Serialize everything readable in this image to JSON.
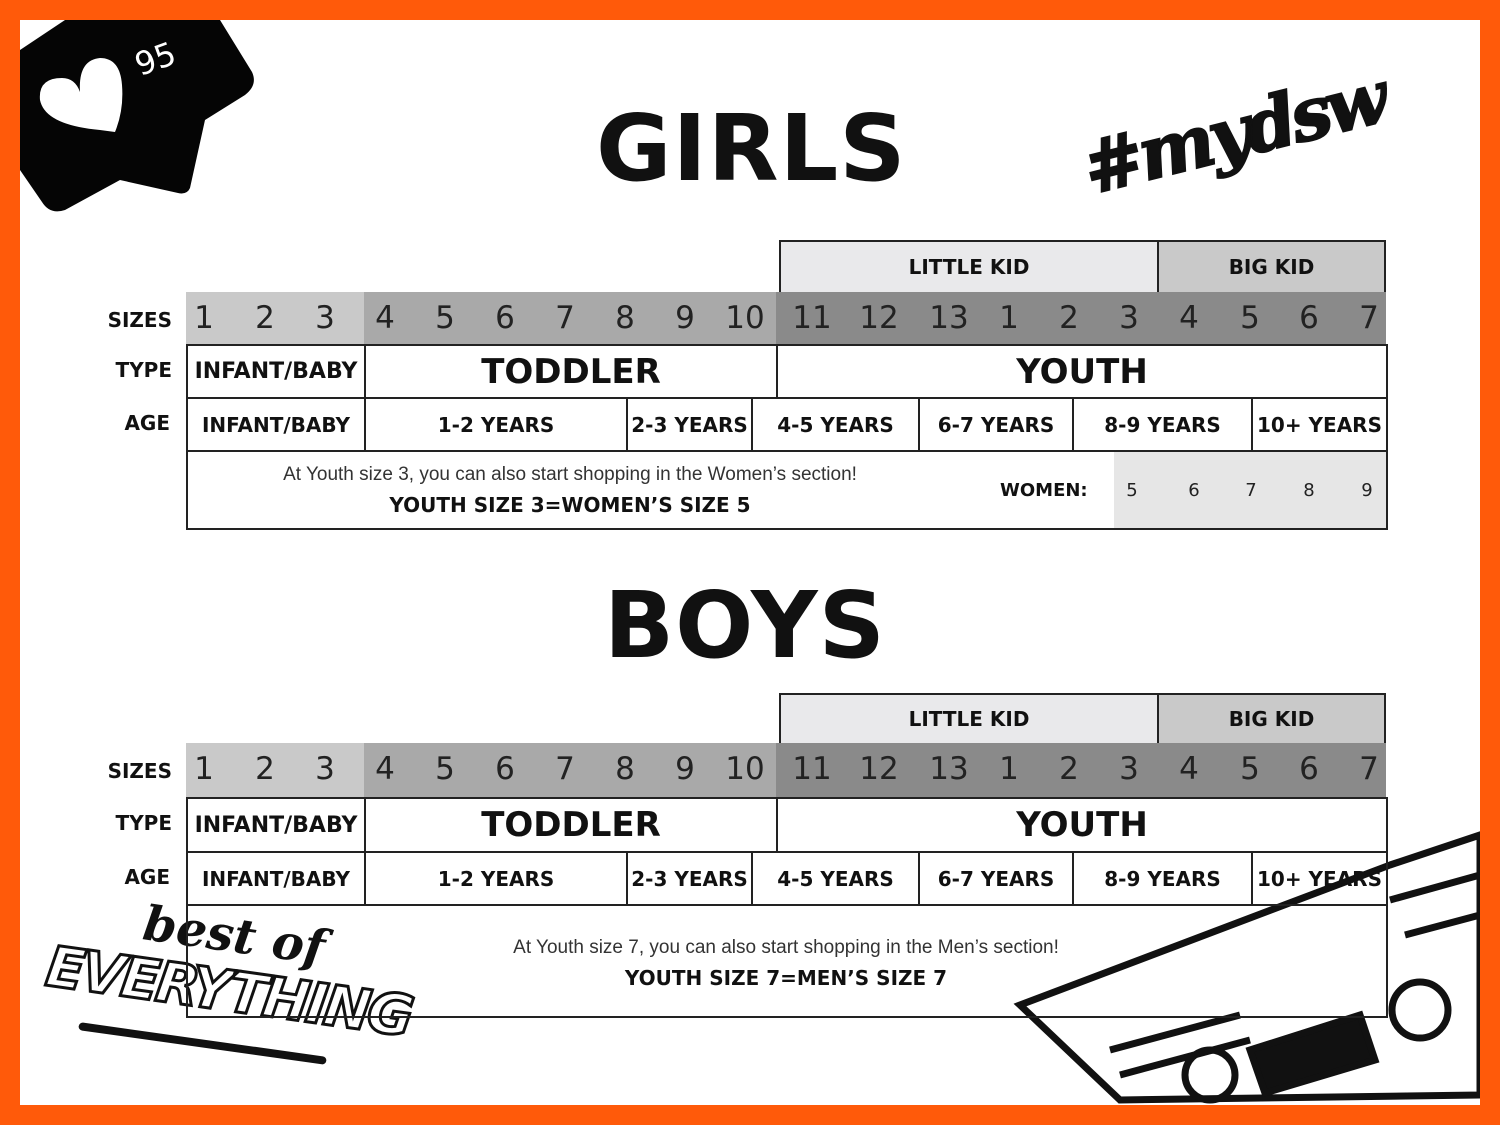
{
  "colors": {
    "border": "#ff5a0a",
    "sizes_infant": "#c9c9c9",
    "sizes_toddler": "#a9a9a9",
    "sizes_youth": "#8a8a8a",
    "little_kid": "#e9e9eb",
    "big_kid": "#c9c9c9",
    "women_cells": "#e6e6e6"
  },
  "badge": {
    "icon": "heart-icon",
    "count": "95"
  },
  "hashtag": "#mydsw",
  "logo": "best of EVERYTHING",
  "row_labels": {
    "sizes": "SIZES",
    "type": "TYPE",
    "age": "AGE"
  },
  "charts": [
    {
      "title": "GIRLS",
      "groups": {
        "little_kid": "LITTLE KID",
        "big_kid": "BIG KID"
      },
      "sizes": [
        "1",
        "2",
        "3",
        "4",
        "5",
        "6",
        "7",
        "8",
        "9",
        "10",
        "11",
        "12",
        "13",
        "1",
        "2",
        "3",
        "4",
        "5",
        "6",
        "7"
      ],
      "types": [
        "INFANT/BABY",
        "TODDLER",
        "YOUTH"
      ],
      "ages": [
        "INFANT/BABY",
        "1-2 YEARS",
        "2-3 YEARS",
        "4-5 YEARS",
        "6-7 YEARS",
        "8-9 YEARS",
        "10+ YEARS"
      ],
      "note": "At Youth size 3, you can also start shopping in the Women’s section!",
      "note_bold": "YOUTH SIZE 3=WOMEN’S SIZE 5",
      "women_label": "WOMEN:",
      "women_sizes": [
        "5",
        "6",
        "7",
        "8",
        "9"
      ]
    },
    {
      "title": "BOYS",
      "groups": {
        "little_kid": "LITTLE KID",
        "big_kid": "BIG KID"
      },
      "sizes": [
        "1",
        "2",
        "3",
        "4",
        "5",
        "6",
        "7",
        "8",
        "9",
        "10",
        "11",
        "12",
        "13",
        "1",
        "2",
        "3",
        "4",
        "5",
        "6",
        "7"
      ],
      "types": [
        "INFANT/BABY",
        "TODDLER",
        "YOUTH"
      ],
      "ages": [
        "INFANT/BABY",
        "1-2 YEARS",
        "2-3 YEARS",
        "4-5 YEARS",
        "6-7 YEARS",
        "8-9 YEARS",
        "10+ YEARS"
      ],
      "note": "At Youth size 7, you can also start shopping in the Men’s section!",
      "note_bold": "YOUTH SIZE 7=MEN’S SIZE 7"
    }
  ]
}
